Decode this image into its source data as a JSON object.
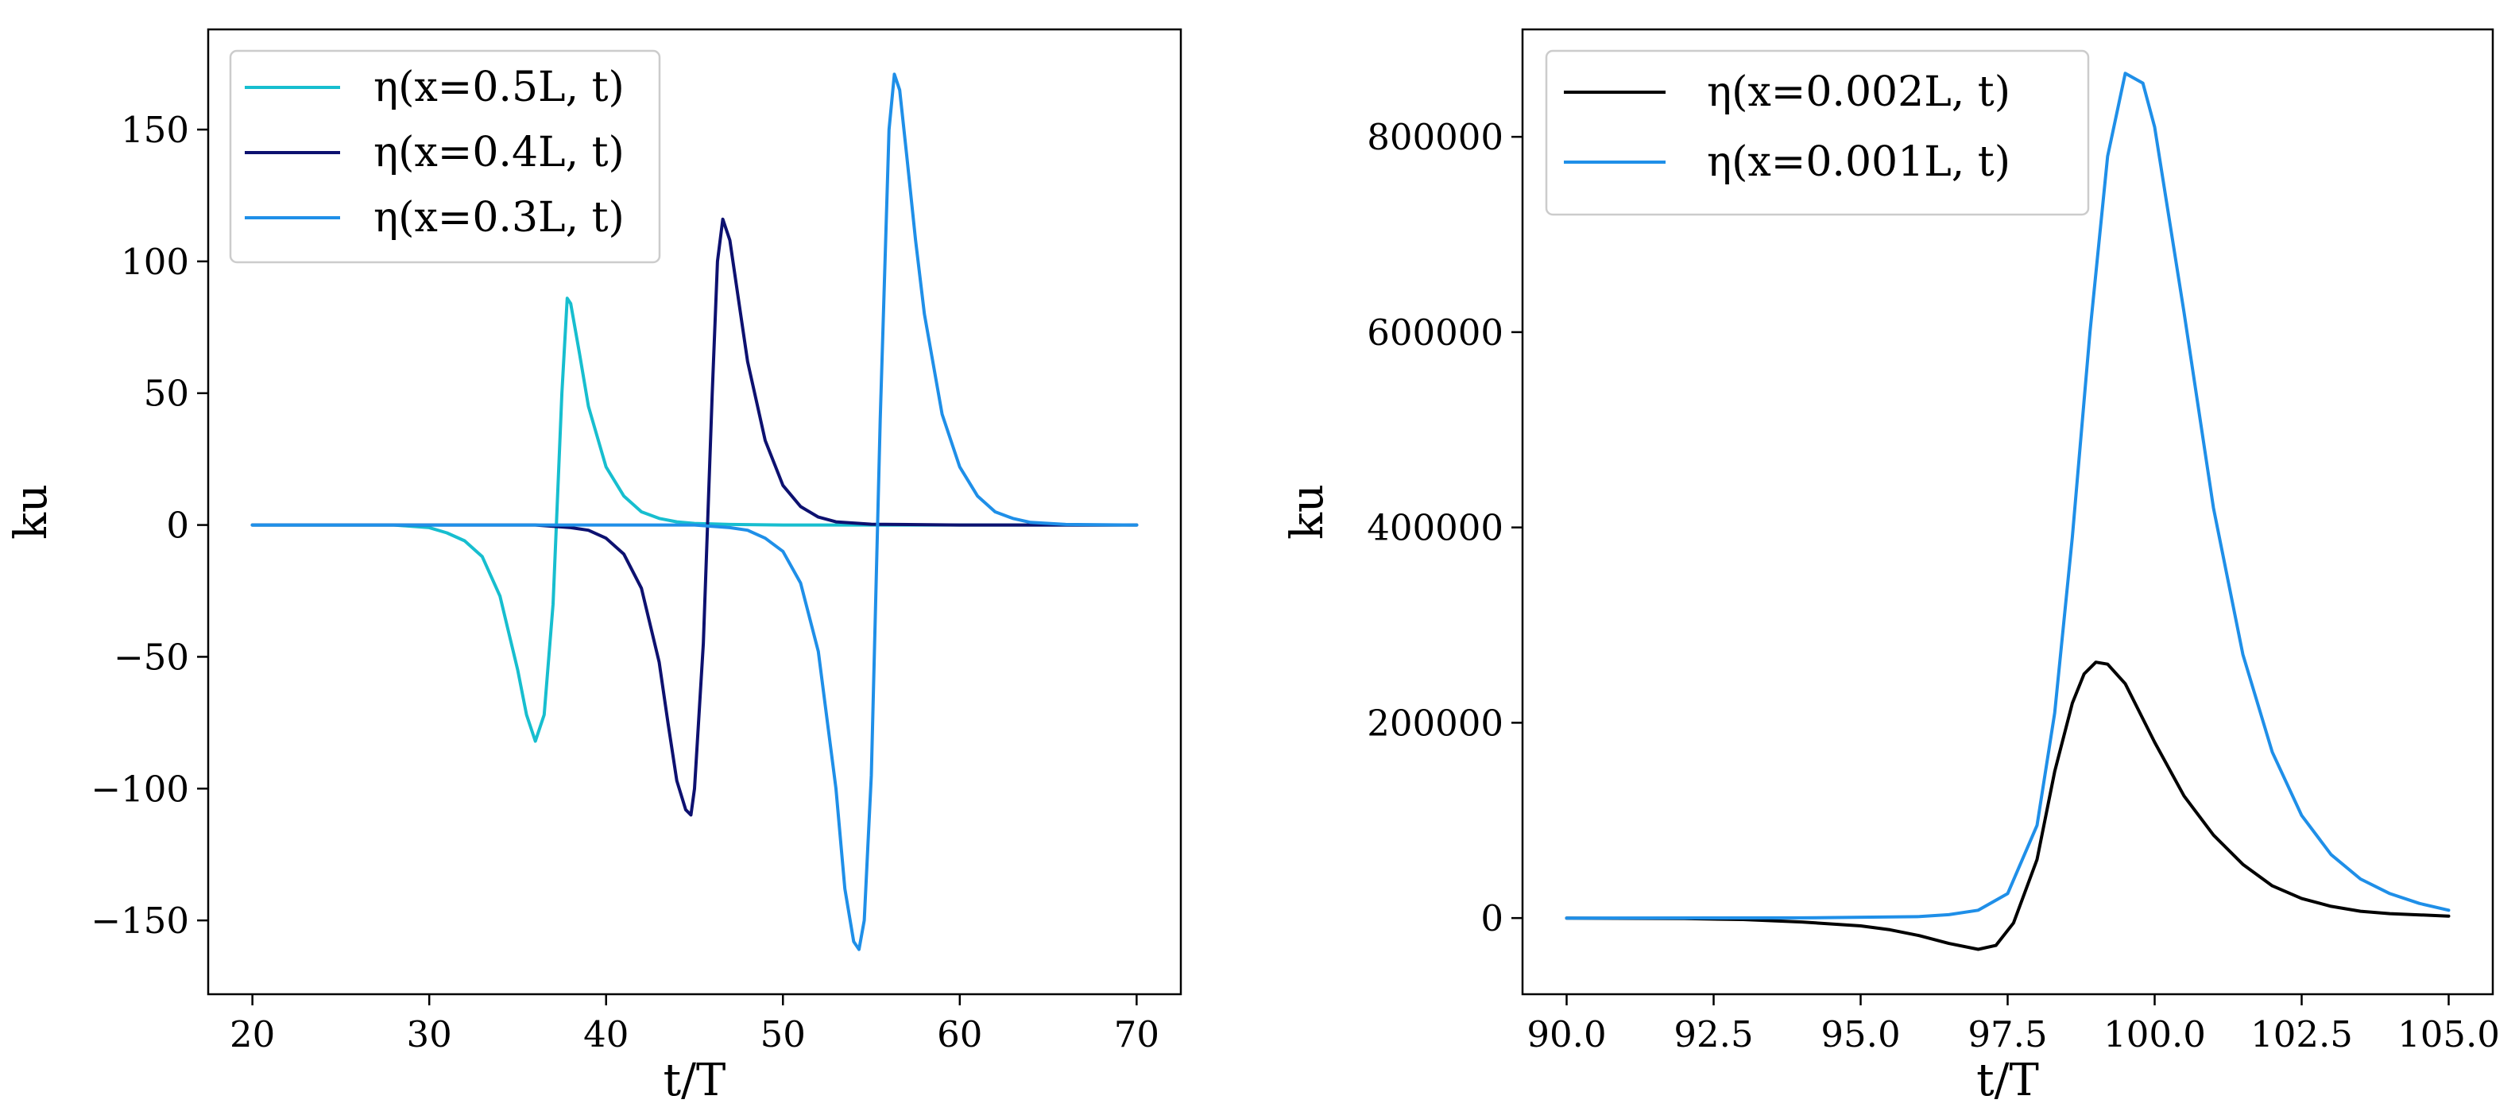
{
  "chart_data": [
    {
      "type": "line",
      "title": "",
      "xlabel": "t/T",
      "ylabel": "ku",
      "xlim": [
        17.5,
        72.5
      ],
      "ylim": [
        -178,
        188
      ],
      "xticks": [
        20,
        30,
        40,
        50,
        60,
        70
      ],
      "xtick_labels": [
        "20",
        "30",
        "40",
        "50",
        "60",
        "70"
      ],
      "yticks": [
        -150,
        -100,
        -50,
        0,
        50,
        100,
        150
      ],
      "ytick_labels": [
        "−150",
        "−100",
        "−50",
        "0",
        "50",
        "100",
        "150"
      ],
      "grid": false,
      "legend_position": "upper-left",
      "series": [
        {
          "name": "η(x=0.5L, t)",
          "color": "#17becf",
          "x": [
            20,
            28,
            30,
            31,
            32,
            33,
            34,
            35,
            35.5,
            36,
            36.5,
            37,
            37.5,
            37.8,
            38,
            38.5,
            39,
            40,
            41,
            42,
            43,
            44,
            45,
            47,
            50,
            55,
            60,
            70
          ],
          "y": [
            0,
            0,
            -1,
            -3,
            -6,
            -12,
            -27,
            -55,
            -72,
            -82,
            -72,
            -30,
            50,
            86,
            84,
            65,
            45,
            22,
            11,
            5,
            2.5,
            1.2,
            0.6,
            0.2,
            0,
            0,
            0,
            0
          ]
        },
        {
          "name": "η(x=0.4L, t)",
          "color": "#0d1170",
          "x": [
            20,
            36,
            38,
            39,
            40,
            41,
            42,
            43,
            43.5,
            44,
            44.5,
            44.8,
            45,
            45.5,
            46,
            46.3,
            46.6,
            47,
            47.5,
            48,
            49,
            50,
            51,
            52,
            53,
            55,
            60,
            70
          ],
          "y": [
            0,
            0,
            -1,
            -2,
            -5,
            -11,
            -24,
            -52,
            -75,
            -97,
            -108,
            -110,
            -100,
            -45,
            50,
            100,
            116,
            108,
            85,
            62,
            32,
            15,
            7,
            3,
            1.2,
            0.3,
            0,
            0
          ]
        },
        {
          "name": "η(x=0.3L, t)",
          "color": "#1f8fe8",
          "x": [
            20,
            45,
            47,
            48,
            49,
            50,
            51,
            52,
            53,
            53.5,
            54,
            54.3,
            54.6,
            55,
            55.5,
            56,
            56.3,
            56.6,
            57,
            57.5,
            58,
            59,
            60,
            61,
            62,
            63,
            64,
            66,
            70
          ],
          "y": [
            0,
            0,
            -1,
            -2,
            -5,
            -10,
            -22,
            -48,
            -100,
            -138,
            -158,
            -161,
            -150,
            -95,
            40,
            150,
            171,
            165,
            140,
            108,
            80,
            42,
            22,
            11,
            5,
            2.5,
            1,
            0.2,
            0
          ]
        }
      ]
    },
    {
      "type": "line",
      "title": "",
      "xlabel": "t/T",
      "ylabel": "ku",
      "xlim": [
        89.25,
        105.75
      ],
      "ylim": [
        -78000,
        910000
      ],
      "xticks": [
        90,
        92.5,
        95,
        97.5,
        100,
        102.5,
        105
      ],
      "xtick_labels": [
        "90.0",
        "92.5",
        "95.0",
        "97.5",
        "100.0",
        "102.5",
        "105.0"
      ],
      "yticks": [
        0,
        200000,
        400000,
        600000,
        800000
      ],
      "ytick_labels": [
        "0",
        "200000",
        "400000",
        "600000",
        "800000"
      ],
      "grid": false,
      "legend_position": "upper-left",
      "series": [
        {
          "name": "η(x=0.002L, t)",
          "color": "#000000",
          "x": [
            90,
            92,
            93,
            94,
            95,
            95.5,
            96,
            96.5,
            97,
            97.3,
            97.6,
            98,
            98.3,
            98.6,
            98.8,
            99,
            99.2,
            99.5,
            100,
            100.5,
            101,
            101.5,
            102,
            102.5,
            103,
            103.5,
            104,
            105
          ],
          "y": [
            0,
            -500,
            -1500,
            -4000,
            -8000,
            -12000,
            -18000,
            -26000,
            -32000,
            -28000,
            -5000,
            60000,
            150000,
            220000,
            250000,
            262000,
            260000,
            240000,
            180000,
            125000,
            85000,
            55000,
            33000,
            20000,
            12000,
            7000,
            4500,
            2000
          ]
        },
        {
          "name": "η(x=0.001L, t)",
          "color": "#1f8fe8",
          "x": [
            90,
            94,
            96,
            96.5,
            97,
            97.5,
            98,
            98.3,
            98.6,
            98.9,
            99.2,
            99.5,
            99.8,
            100,
            100.5,
            101,
            101.5,
            102,
            102.5,
            103,
            103.5,
            104,
            104.5,
            105
          ],
          "y": [
            0,
            200,
            1500,
            3500,
            8000,
            25000,
            95000,
            210000,
            390000,
            600000,
            780000,
            865000,
            855000,
            810000,
            620000,
            420000,
            270000,
            170000,
            105000,
            65000,
            40000,
            25000,
            15000,
            8000
          ]
        }
      ]
    }
  ]
}
